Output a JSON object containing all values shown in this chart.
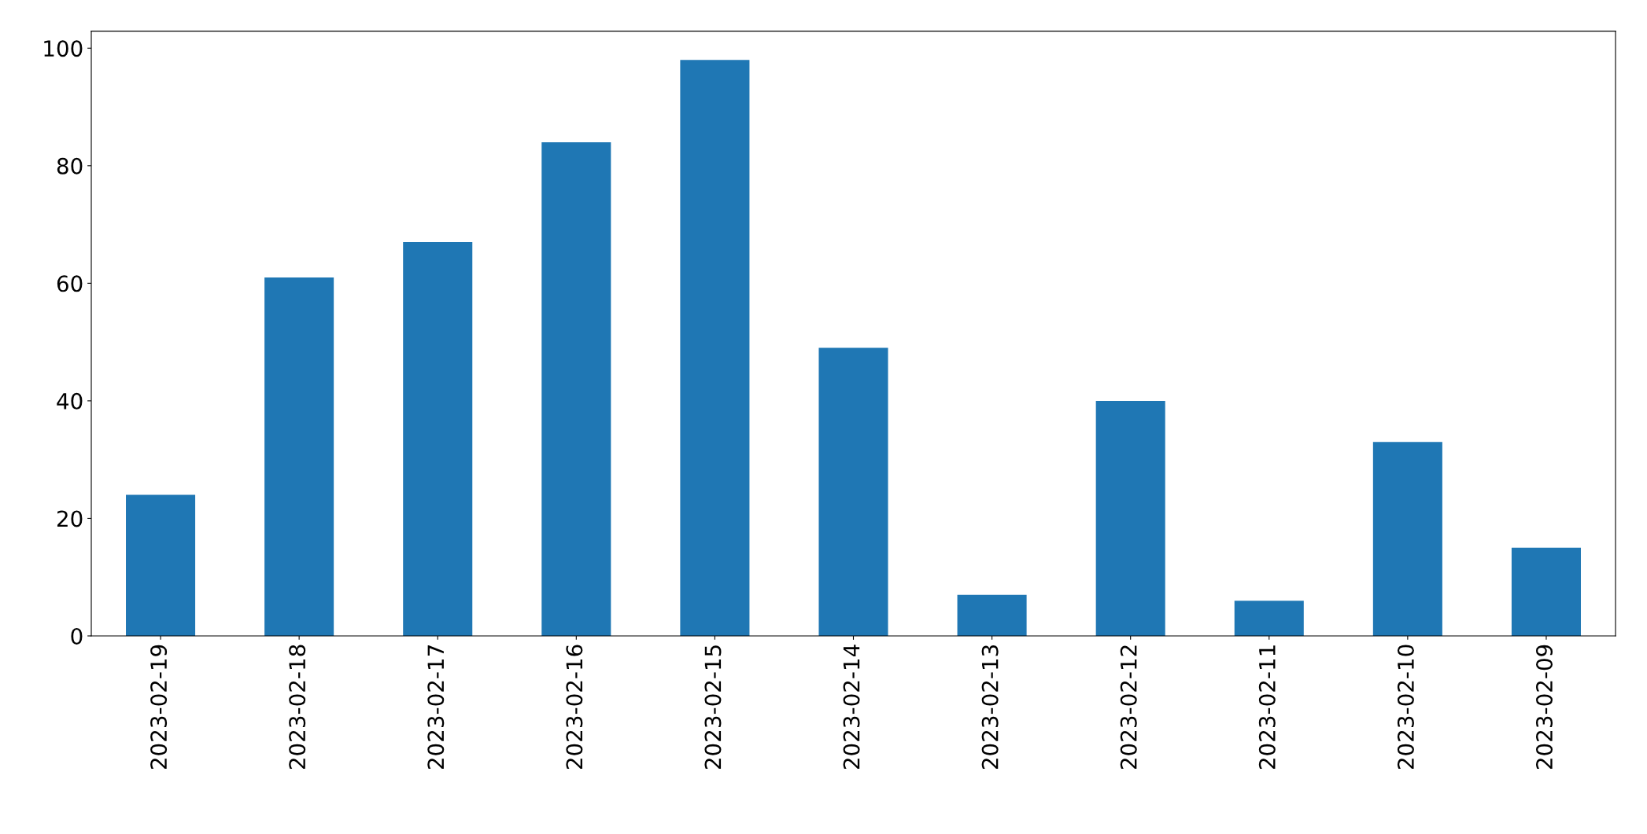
{
  "chart_data": {
    "type": "bar",
    "categories": [
      "2023-02-19",
      "2023-02-18",
      "2023-02-17",
      "2023-02-16",
      "2023-02-15",
      "2023-02-14",
      "2023-02-13",
      "2023-02-12",
      "2023-02-11",
      "2023-02-10",
      "2023-02-09"
    ],
    "values": [
      24,
      61,
      67,
      84,
      98,
      49,
      7,
      40,
      6,
      33,
      15
    ],
    "color": "#1f77b4",
    "ylim": [
      0,
      102.9
    ],
    "yticks": [
      0,
      20,
      40,
      60,
      80,
      100
    ],
    "grid": false
  }
}
